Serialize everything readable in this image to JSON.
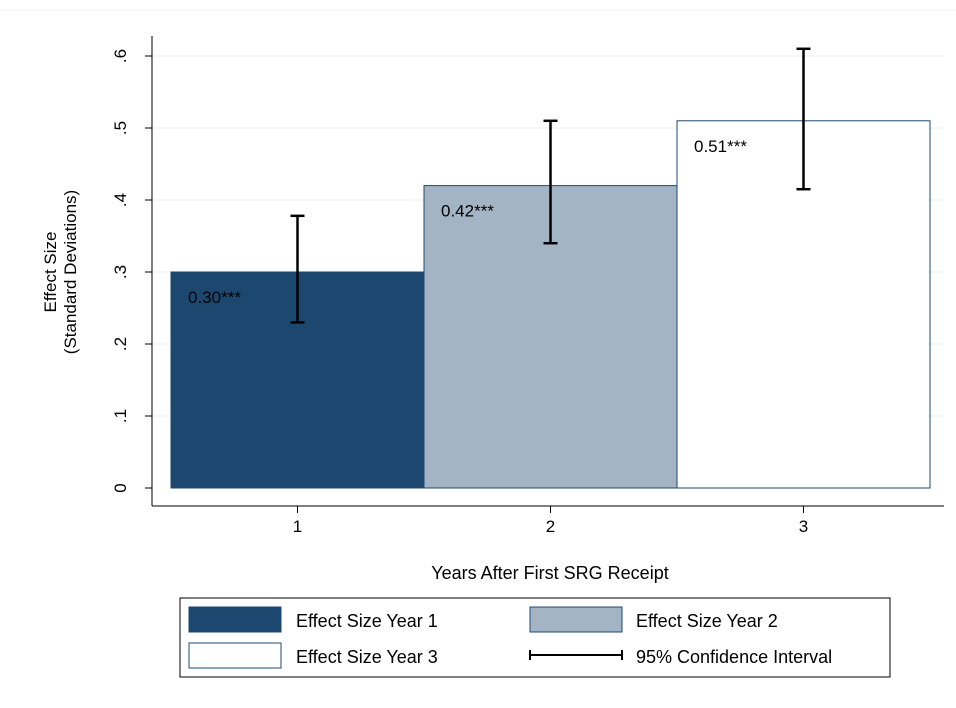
{
  "chart_data": {
    "type": "bar",
    "categories": [
      "1",
      "2",
      "3"
    ],
    "values": [
      0.3,
      0.42,
      0.51
    ],
    "value_labels": [
      "0.30***",
      "0.42***",
      "0.51***"
    ],
    "ci_low": [
      0.23,
      0.34,
      0.415
    ],
    "ci_high": [
      0.378,
      0.51,
      0.61
    ],
    "xlabel": "Years After First SRG Receipt",
    "ylabel_lines": [
      "Effect Size",
      "(Standard Deviations)"
    ],
    "yticks": [
      0,
      0.1,
      0.2,
      0.3,
      0.4,
      0.5,
      0.6
    ],
    "ytick_labels": [
      "0",
      ".1",
      ".2",
      ".3",
      ".4",
      ".5",
      ".6"
    ],
    "ylim": [
      0,
      0.64
    ],
    "grid": true,
    "legend_placement": "bottom",
    "series": [
      {
        "name": "Effect Size Year 1",
        "color": "#1c4870"
      },
      {
        "name": "Effect Size Year 2",
        "color": "#a3b4c4"
      },
      {
        "name": "Effect Size Year 3",
        "color": "#ffffff"
      }
    ],
    "legend_ci_label": "95% Confidence Interval",
    "colors": {
      "bar_stroke": "#1c4870",
      "ci_line": "#000000",
      "grid": "#eaf0f5",
      "axis": "#000000"
    }
  }
}
